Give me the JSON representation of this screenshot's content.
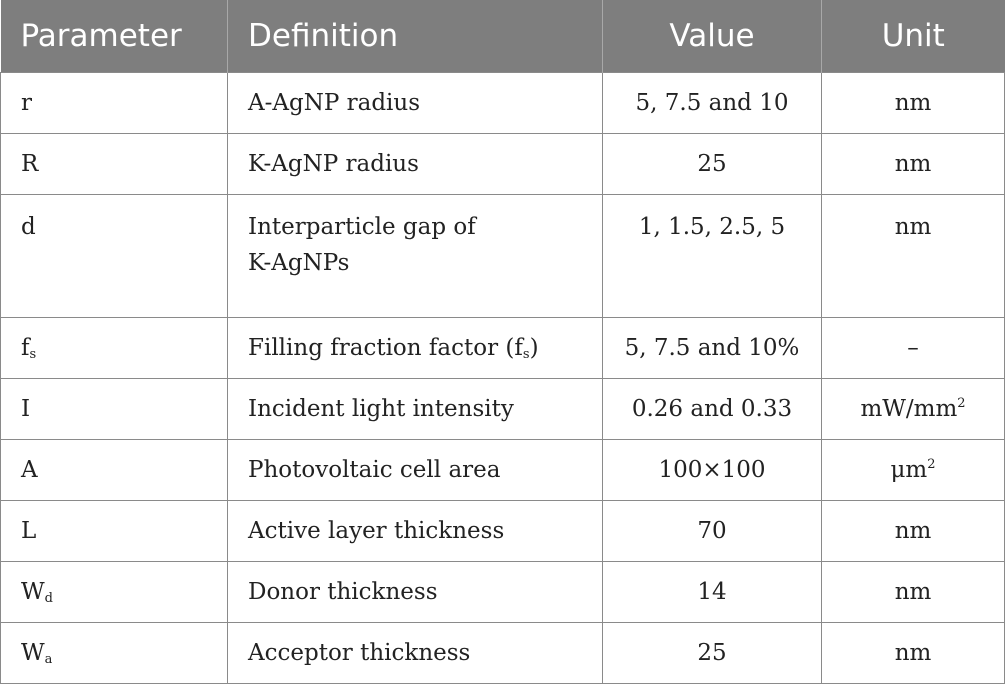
{
  "headers": {
    "parameter": "Parameter",
    "definition": "Definition",
    "value": "Value",
    "unit": "Unit"
  },
  "rows": [
    {
      "param": "r",
      "param_sub": "",
      "definition": "A-AgNP radius",
      "def_sub": "",
      "def_tail": "",
      "value": "5, 7.5 and 10",
      "unit": "nm",
      "unit_sup": ""
    },
    {
      "param": "R",
      "param_sub": "",
      "definition": "K-AgNP radius",
      "def_sub": "",
      "def_tail": "",
      "value": "25",
      "unit": "nm",
      "unit_sup": ""
    },
    {
      "param": "d",
      "param_sub": "",
      "definition": "Interparticle gap of",
      "def_line2": "K-AgNPs",
      "value": "1, 1.5, 2.5, 5",
      "unit": "nm",
      "unit_sup": ""
    },
    {
      "param": "f",
      "param_sub": "s",
      "definition": "Filling fraction factor (f",
      "def_sub": "s",
      "def_tail": ")",
      "value": "5, 7.5 and 10%",
      "unit": "–",
      "unit_sup": ""
    },
    {
      "param": "I",
      "param_sub": "",
      "definition": "Incident light intensity",
      "def_sub": "",
      "def_tail": "",
      "value": "0.26 and 0.33",
      "unit": "mW/mm",
      "unit_sup": "2"
    },
    {
      "param": "A",
      "param_sub": "",
      "definition": "Photovoltaic cell area",
      "def_sub": "",
      "def_tail": "",
      "value": "100×100",
      "unit": "μm",
      "unit_sup": "2"
    },
    {
      "param": "L",
      "param_sub": "",
      "definition": "Active layer thickness",
      "def_sub": "",
      "def_tail": "",
      "value": "70",
      "unit": "nm",
      "unit_sup": ""
    },
    {
      "param": "W",
      "param_sub": "d",
      "definition": "Donor thickness",
      "def_sub": "",
      "def_tail": "",
      "value": "14",
      "unit": "nm",
      "unit_sup": ""
    },
    {
      "param": "W",
      "param_sub": "a",
      "definition": "Acceptor thickness",
      "def_sub": "",
      "def_tail": "",
      "value": "25",
      "unit": "nm",
      "unit_sup": ""
    }
  ]
}
